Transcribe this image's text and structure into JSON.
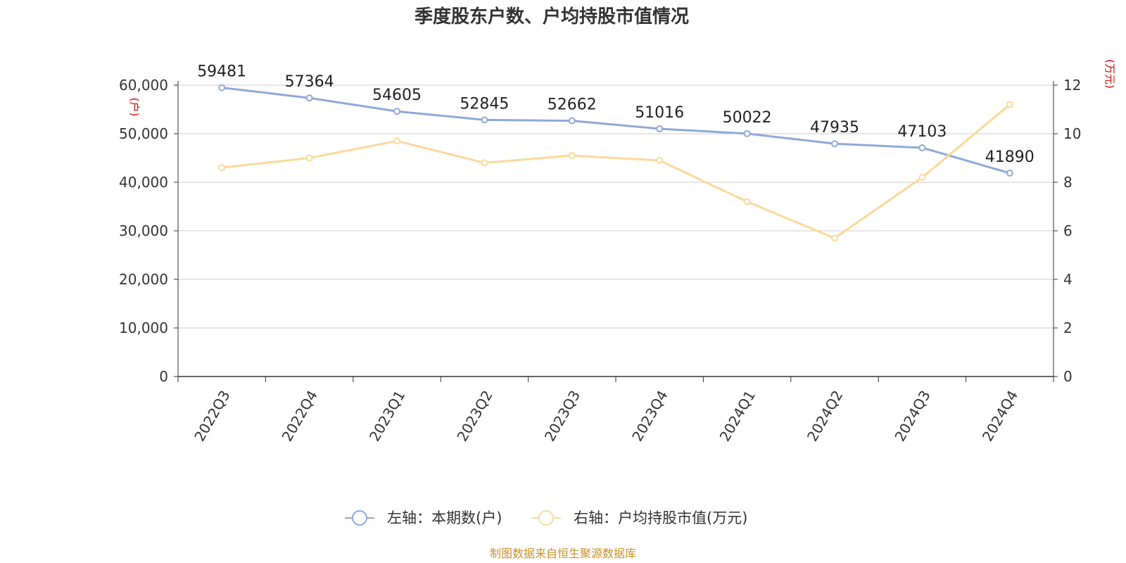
{
  "chart_data": {
    "type": "line",
    "title": "季度股东户数、户均持股市值情况",
    "categories": [
      "2022Q3",
      "2022Q4",
      "2023Q1",
      "2023Q2",
      "2023Q3",
      "2023Q4",
      "2024Q1",
      "2024Q2",
      "2024Q3",
      "2024Q4"
    ],
    "series": [
      {
        "name": "左轴：本期数(户)",
        "axis": "left",
        "color": "#8eaadb",
        "values": [
          59481,
          57364,
          54605,
          52845,
          52662,
          51016,
          50022,
          47935,
          47103,
          41890
        ],
        "show_labels": true
      },
      {
        "name": "右轴：户均持股市值(万元)",
        "axis": "right",
        "color": "#fdd89a",
        "values": [
          8.6,
          9.0,
          9.7,
          8.8,
          9.1,
          8.9,
          7.2,
          5.7,
          8.2,
          11.2
        ],
        "show_labels": false
      }
    ],
    "y_left": {
      "unit": "(户)",
      "ylim": [
        0,
        60000
      ],
      "ticks": [
        "0",
        "10,000",
        "20,000",
        "30,000",
        "40,000",
        "50,000",
        "60,000"
      ]
    },
    "y_right": {
      "unit": "(万元)",
      "ylim": [
        0,
        12
      ],
      "ticks": [
        "0",
        "2",
        "4",
        "6",
        "8",
        "10",
        "12"
      ]
    },
    "grid": true,
    "legend_position": "bottom-center",
    "source": "制图数据来自恒生聚源数据库"
  }
}
